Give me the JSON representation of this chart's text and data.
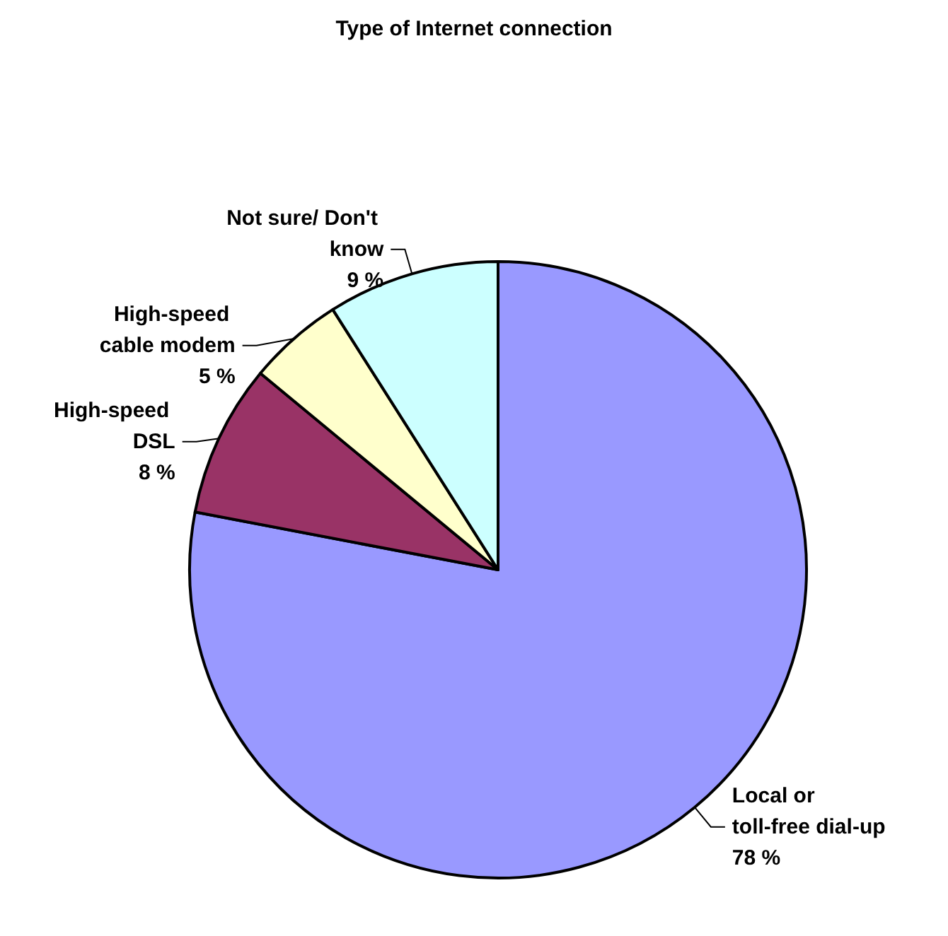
{
  "chart_data": {
    "type": "pie",
    "title": "Type of Internet connection",
    "categories": [
      "Local or toll-free dial-up",
      "High-speed DSL",
      "High-speed cable modem",
      "Not sure/ Don't know"
    ],
    "values": [
      78,
      8,
      5,
      9
    ],
    "colors": [
      "#9999ff",
      "#993366",
      "#ffffcc",
      "#ccffff"
    ],
    "value_labels": [
      "78 %",
      "8 %",
      "5 %",
      "9 %"
    ],
    "legend": false
  }
}
